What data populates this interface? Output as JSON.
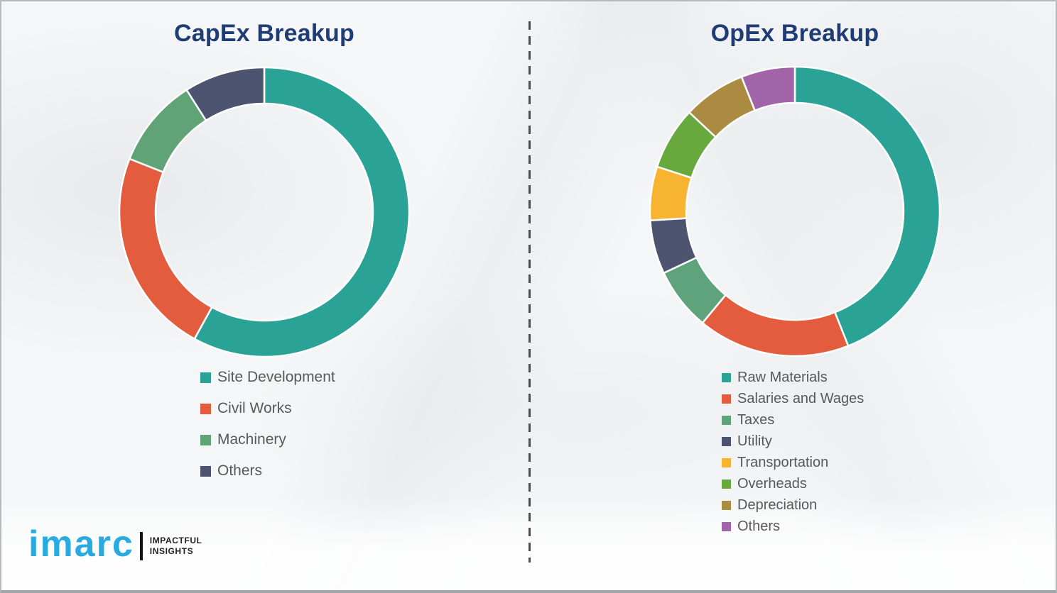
{
  "chart_data": [
    {
      "type": "pie",
      "subtype": "donut",
      "title": "CapEx Breakup",
      "labels": [
        "Site Development",
        "Civil Works",
        "Machinery",
        "Others"
      ],
      "values": [
        58,
        23,
        10,
        9
      ],
      "unit": "percent (estimated from arc angles, no data labels shown)",
      "colors": [
        "#2AA396",
        "#E25C3D",
        "#5FA376",
        "#4C5470"
      ],
      "start_angle": "top",
      "direction": "clockwise",
      "inner_radius_ratio": 0.75,
      "legend_position": "below-chart-left",
      "data_labels_shown": false
    },
    {
      "type": "pie",
      "subtype": "donut",
      "title": "OpEx Breakup",
      "labels": [
        "Raw Materials",
        "Salaries and Wages",
        "Taxes",
        "Utility",
        "Transportation",
        "Overheads",
        "Depreciation",
        "Others"
      ],
      "values": [
        44,
        17,
        7,
        6,
        6,
        7,
        7,
        6
      ],
      "unit": "percent (estimated from arc angles, no data labels shown)",
      "colors": [
        "#2AA396",
        "#E25C3D",
        "#5FA37C",
        "#4C5470",
        "#F7B431",
        "#68A93E",
        "#AB8A41",
        "#A264A8"
      ],
      "start_angle": "top",
      "direction": "clockwise",
      "inner_radius_ratio": 0.75,
      "legend_position": "below-chart-left",
      "data_labels_shown": false
    }
  ],
  "logo": {
    "brand": "imarc",
    "tagline_line1": "IMPACTFUL",
    "tagline_line2": "INSIGHTS",
    "brand_color": "#29ABE2"
  },
  "theme": {
    "title_color": "#1F3C74",
    "legend_text_color": "#595959",
    "divider_color": "#4B4B4B",
    "segment_separator_color": "#FFFFFF",
    "background_color": "#F5F6F7"
  }
}
